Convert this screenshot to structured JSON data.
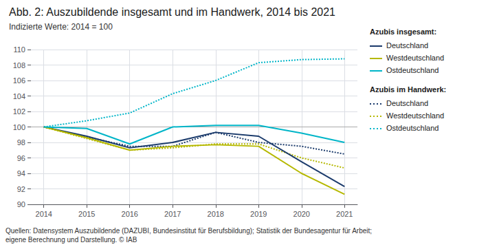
{
  "chart_data": {
    "type": "line",
    "title": "Abb. 2: Auszubildende insgesamt und im Handwerk, 2014 bis 2021",
    "subtitle": "Indizierte Werte: 2014 = 100",
    "footnote": "Quellen: Datensystem Auszubildende (DAZUBI, Bundesinstitut für Berufsbildung); Statistik der Bundesagentur für Arbeit;\neigene Berechnung und Darstellung. © IAB",
    "x": [
      2014,
      2015,
      2016,
      2017,
      2018,
      2019,
      2020,
      2021
    ],
    "xlim": [
      2013.7,
      2021.3
    ],
    "xticks": [
      2014,
      2015,
      2016,
      2017,
      2018,
      2019,
      2020,
      2021
    ],
    "ylim": [
      90,
      110
    ],
    "yticks": [
      90,
      92,
      94,
      96,
      98,
      100,
      102,
      104,
      106,
      108,
      110
    ],
    "grid": true,
    "legend": "right",
    "legend_groups": [
      {
        "title": "Azubis insgesamt:",
        "line_style": "solid"
      },
      {
        "title": "Azubis im Handwerk:",
        "line_style": "dotted"
      }
    ],
    "hline": {
      "y": 100,
      "color": "#aaaaaa"
    },
    "series": [
      {
        "name": "Deutschland",
        "color": "#1a3a6b",
        "line_style": "solid",
        "values": [
          100,
          98.8,
          97.3,
          98.0,
          99.3,
          98.8,
          95.5,
          92.3
        ]
      },
      {
        "name": "Westdeutschland",
        "color": "#b5b800",
        "line_style": "solid",
        "values": [
          100,
          98.6,
          97.0,
          97.5,
          97.7,
          97.5,
          94.0,
          91.3
        ]
      },
      {
        "name": "Ostdeutschland",
        "color": "#00b5c8",
        "line_style": "solid",
        "values": [
          100,
          99.8,
          97.8,
          100.0,
          100.2,
          100.2,
          99.2,
          98.0
        ]
      },
      {
        "name": "Deutschland",
        "color": "#1a3a6b",
        "line_style": "dotted",
        "values": [
          100,
          98.7,
          97.5,
          97.5,
          99.3,
          98.0,
          97.5,
          96.5
        ]
      },
      {
        "name": "Westdeutschland",
        "color": "#b5b800",
        "line_style": "dotted",
        "values": [
          100,
          98.5,
          97.0,
          97.3,
          97.8,
          97.8,
          96.0,
          94.7
        ]
      },
      {
        "name": "Ostdeutschland",
        "color": "#00b5c8",
        "line_style": "dotted",
        "values": [
          100,
          100.8,
          101.8,
          104.3,
          106.0,
          108.3,
          108.7,
          108.8
        ]
      }
    ]
  }
}
